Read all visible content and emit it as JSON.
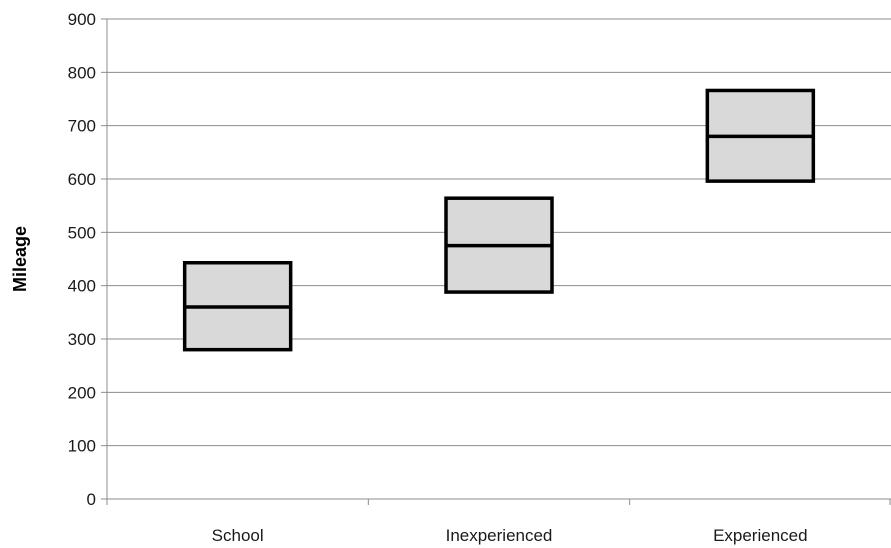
{
  "chart_data": {
    "type": "box",
    "categories": [
      "School",
      "Inexperienced",
      "Experienced"
    ],
    "boxes": [
      {
        "category": "School",
        "q1": 280,
        "median": 360,
        "q3": 443
      },
      {
        "category": "Inexperienced",
        "q1": 388,
        "median": 475,
        "q3": 564
      },
      {
        "category": "Experienced",
        "q1": 596,
        "median": 680,
        "q3": 766
      }
    ],
    "title": "",
    "xlabel": "",
    "ylabel": "Mileage",
    "ylim": [
      0,
      900
    ],
    "yticks": [
      0,
      100,
      200,
      300,
      400,
      500,
      600,
      700,
      800,
      900
    ],
    "grid": "horizontal",
    "colors": {
      "box_fill": "#d9d9d9",
      "box_stroke": "#000000",
      "grid": "#8c8c8c",
      "axis": "#8c8c8c"
    }
  }
}
